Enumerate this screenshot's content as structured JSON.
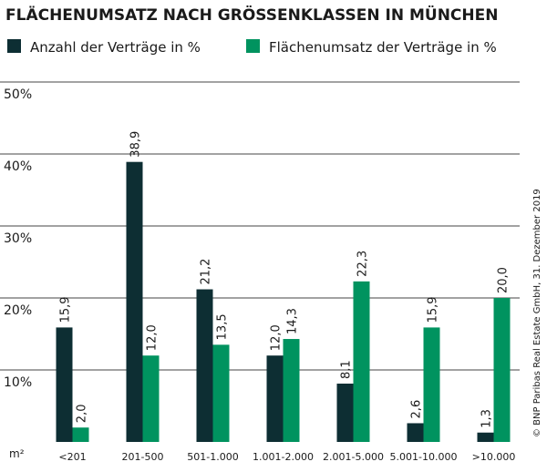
{
  "chart_data": {
    "type": "bar",
    "title": "FLÄCHENUMSATZ NACH GRÖSSENKLASSEN IN MÜNCHEN",
    "source": "© BNP Paribas Real Estate GmbH, 31. Dezember 2019",
    "x_label": "m²",
    "categories": [
      "<201",
      "201-500",
      "501-1.000",
      "1.001-2.000",
      "2.001-5.000",
      "5.001-10.000",
      ">10.000"
    ],
    "series": [
      {
        "name": "Anzahl der Verträge in %",
        "color": "#0d2e33",
        "values": [
          15.9,
          38.9,
          21.2,
          12.0,
          8.1,
          2.6,
          1.3
        ],
        "value_labels": [
          "15,9",
          "38,9",
          "21,2",
          "12,0",
          "8,1",
          "2,6",
          "1,3"
        ]
      },
      {
        "name": "Flächenumsatz der Verträge in %",
        "color": "#00935f",
        "values": [
          2.0,
          12.0,
          13.5,
          14.3,
          22.3,
          15.9,
          20.0
        ],
        "value_labels": [
          "2,0",
          "12,0",
          "13,5",
          "14,3",
          "22,3",
          "15,9",
          "20,0"
        ]
      }
    ],
    "ylim": [
      0,
      50
    ],
    "yticks": [
      {
        "value": 10,
        "label": "10%"
      },
      {
        "value": 20,
        "label": "20%"
      },
      {
        "value": 30,
        "label": "30%"
      },
      {
        "value": 40,
        "label": "40%"
      },
      {
        "value": 50,
        "label": "50%"
      }
    ],
    "grid": true
  }
}
